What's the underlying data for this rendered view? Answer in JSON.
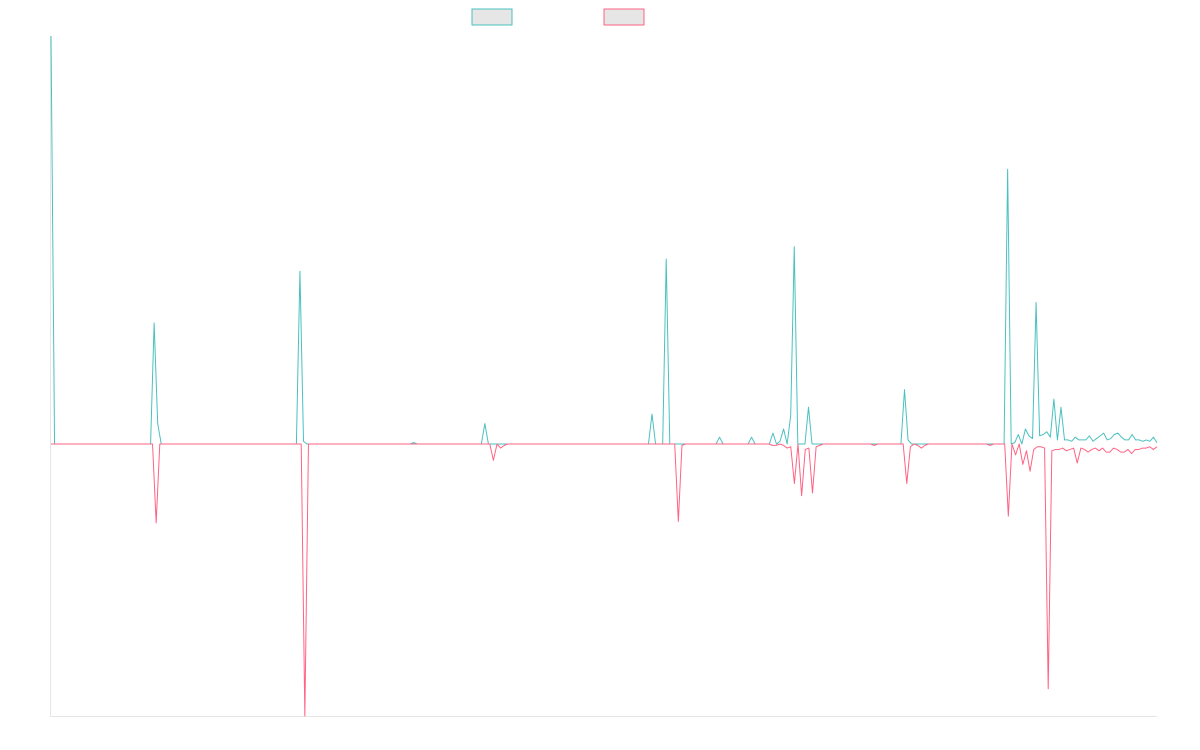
{
  "chart_data": {
    "type": "line",
    "title": "",
    "xlabel": "",
    "ylabel": "",
    "legend": "top-center",
    "grid": false,
    "series": [
      {
        "color": "#4bc0c0",
        "values": [
          300,
          0,
          0,
          0,
          0,
          0,
          0,
          0,
          0,
          0,
          0,
          0,
          0,
          0,
          0,
          0,
          0,
          0,
          0,
          0,
          0,
          0,
          0,
          0,
          0,
          0,
          0,
          0,
          0,
          89,
          15,
          0,
          0,
          0,
          0,
          0,
          0,
          0,
          0,
          0,
          0,
          0,
          0,
          0,
          0,
          0,
          0,
          0,
          0,
          0,
          0,
          0,
          0,
          0,
          0,
          0,
          0,
          0,
          0,
          0,
          0,
          0,
          0,
          0,
          0,
          0,
          0,
          0,
          0,
          0,
          127,
          2,
          0,
          0,
          0,
          0,
          0,
          0,
          0,
          0,
          0,
          0,
          0,
          0,
          0,
          0,
          0,
          0,
          0,
          0,
          0,
          0,
          0,
          0,
          0,
          0,
          0,
          0,
          0,
          0,
          0,
          0,
          1,
          0,
          0,
          0,
          0,
          0,
          0,
          0,
          0,
          0,
          0,
          0,
          0,
          0,
          0,
          0,
          0,
          0,
          0,
          0,
          15,
          0,
          0,
          0,
          0,
          0,
          0,
          0,
          0,
          0,
          0,
          0,
          0,
          0,
          0,
          0,
          0,
          0,
          0,
          0,
          0,
          0,
          0,
          0,
          0,
          0,
          0,
          0,
          0,
          0,
          0,
          0,
          0,
          0,
          0,
          0,
          0,
          0,
          0,
          0,
          0,
          0,
          0,
          0,
          0,
          0,
          0,
          22,
          0,
          0,
          0,
          136,
          0,
          0,
          0,
          0,
          0,
          0,
          0,
          0,
          0,
          0,
          0,
          0,
          0,
          0,
          5,
          0,
          0,
          0,
          0,
          0,
          0,
          0,
          0,
          5,
          0,
          0,
          0,
          0,
          0,
          8,
          0,
          2,
          11,
          0,
          21,
          145,
          0,
          0,
          0,
          27,
          0,
          0,
          0,
          0,
          0,
          0,
          0,
          0,
          0,
          0,
          0,
          0,
          0,
          0,
          0,
          0,
          0,
          0,
          0,
          0,
          0,
          0,
          0,
          0,
          0,
          0,
          40,
          3,
          0,
          0,
          0,
          0,
          0,
          0,
          0,
          0,
          0,
          0,
          0,
          0,
          0,
          0,
          0,
          0,
          0,
          0,
          0,
          0,
          0,
          0,
          0,
          0,
          0,
          0,
          0,
          202,
          0,
          1,
          7,
          0,
          11,
          6,
          4,
          104,
          6,
          7,
          9,
          5,
          33,
          3,
          27,
          3,
          3,
          2,
          5,
          3,
          3,
          3,
          6,
          2,
          4,
          6,
          8,
          3,
          4,
          7,
          8,
          5,
          3,
          3,
          7,
          3,
          3,
          2,
          3,
          2,
          5,
          1
        ]
      },
      {
        "color": "#ff6384",
        "values": [
          0,
          0,
          0,
          0,
          0,
          0,
          0,
          0,
          0,
          0,
          0,
          0,
          0,
          0,
          0,
          0,
          0,
          0,
          0,
          0,
          0,
          0,
          0,
          0,
          0,
          0,
          0,
          0,
          0,
          -58,
          0,
          0,
          0,
          0,
          0,
          0,
          0,
          0,
          0,
          0,
          0,
          0,
          0,
          0,
          0,
          0,
          0,
          0,
          0,
          0,
          0,
          0,
          0,
          0,
          0,
          0,
          0,
          0,
          0,
          0,
          0,
          0,
          0,
          0,
          0,
          0,
          0,
          0,
          0,
          0,
          -200,
          0,
          0,
          0,
          0,
          0,
          0,
          0,
          0,
          0,
          0,
          0,
          0,
          0,
          0,
          0,
          0,
          0,
          0,
          0,
          0,
          0,
          0,
          0,
          0,
          0,
          0,
          0,
          0,
          0,
          0,
          0,
          0,
          0,
          0,
          0,
          0,
          0,
          0,
          0,
          0,
          0,
          0,
          0,
          0,
          0,
          0,
          0,
          0,
          0,
          0,
          0,
          -12,
          0,
          -3,
          -1,
          0,
          0,
          0,
          0,
          0,
          0,
          0,
          0,
          0,
          0,
          0,
          0,
          0,
          0,
          0,
          0,
          0,
          0,
          0,
          0,
          0,
          0,
          0,
          0,
          0,
          0,
          0,
          0,
          0,
          0,
          0,
          0,
          0,
          0,
          0,
          0,
          0,
          0,
          0,
          0,
          0,
          0,
          0,
          0,
          0,
          0,
          0,
          -57,
          -1,
          0,
          0,
          0,
          0,
          0,
          0,
          0,
          0,
          0,
          0,
          0,
          0,
          0,
          0,
          0,
          0,
          0,
          0,
          0,
          0,
          0,
          0,
          0,
          0,
          -1,
          -1,
          0,
          -1,
          -3,
          -2,
          -29,
          0,
          -38,
          -4,
          -3,
          -36,
          -2,
          -1,
          0,
          0,
          0,
          0,
          0,
          0,
          0,
          0,
          0,
          0,
          0,
          0,
          0,
          0,
          -1,
          0,
          0,
          0,
          0,
          0,
          0,
          0,
          0,
          -29,
          -2,
          0,
          -1,
          -3,
          -1,
          0,
          0,
          0,
          0,
          0,
          0,
          0,
          0,
          0,
          0,
          0,
          0,
          0,
          0,
          0,
          0,
          0,
          -1,
          0,
          0,
          0,
          0,
          -53,
          0,
          -8,
          0,
          -15,
          -5,
          -20,
          -4,
          -2,
          -2,
          -3,
          -180,
          -5,
          -4,
          -4,
          -3,
          -5,
          -4,
          -3,
          -14,
          -3,
          -4,
          -6,
          -4,
          -3,
          -5,
          -3,
          -6,
          -6,
          -3,
          -4,
          -6,
          -6,
          -4,
          -7,
          -4,
          -4,
          -3,
          -3,
          -2,
          -4,
          -2
        ]
      }
    ],
    "ylim": [
      -200,
      300
    ]
  }
}
